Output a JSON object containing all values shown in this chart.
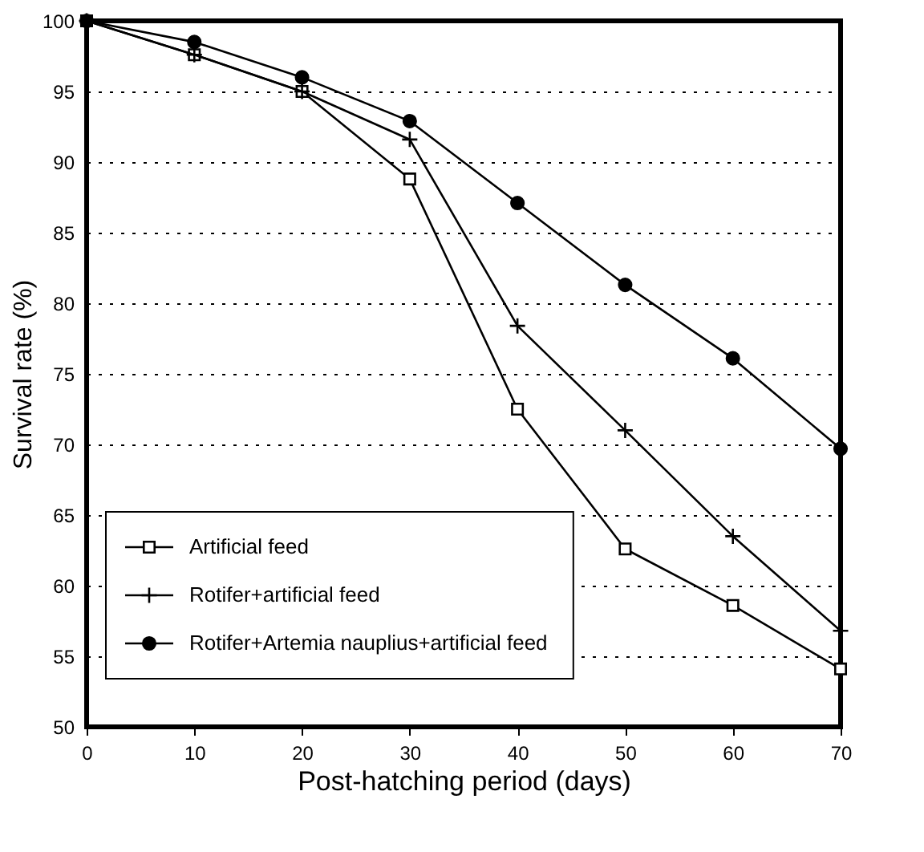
{
  "chart_data": {
    "type": "line",
    "xlabel": "Post-hatching period (days)",
    "ylabel": "Survival rate (%)",
    "x": [
      0,
      10,
      20,
      30,
      40,
      50,
      60,
      70
    ],
    "series": [
      {
        "name": "Artificial feed",
        "color": "#000000",
        "marker": "square",
        "values": [
          100,
          97.6,
          95,
          88.8,
          72.5,
          62.6,
          58.6,
          54.1
        ]
      },
      {
        "name": "Rotifer+artificial feed",
        "color": "#000000",
        "marker": "cross",
        "values": [
          100,
          97.6,
          95,
          91.6,
          78.4,
          71,
          63.5,
          56.8
        ]
      },
      {
        "name": "Rotifer+Artemia nauplius+artificial feed",
        "color": "#000000",
        "marker": "circle",
        "values": [
          100,
          98.5,
          96,
          92.9,
          87.1,
          81.3,
          76.1,
          69.7
        ]
      }
    ],
    "xlim": [
      0,
      70
    ],
    "xticks": [
      0,
      10,
      20,
      30,
      40,
      50,
      60,
      70
    ],
    "ylim": [
      50,
      100
    ],
    "yticks": [
      50,
      55,
      60,
      65,
      70,
      75,
      80,
      85,
      90,
      95,
      100
    ],
    "grid": "y",
    "legend": "bottom left",
    "line_style": "solid"
  }
}
